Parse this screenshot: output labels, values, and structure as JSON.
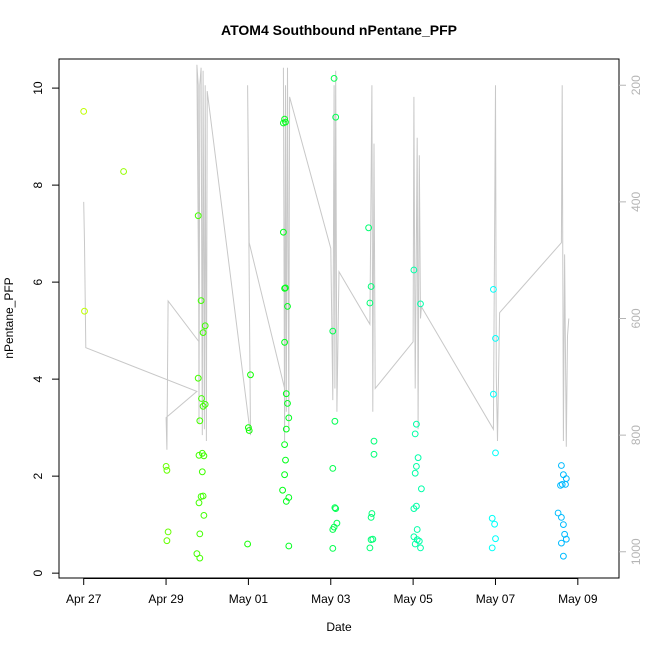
{
  "chart_data": {
    "type": "scatter",
    "title": "ATOM4 Southbound nPentane_PFP",
    "xlabel": "Date",
    "ylabel": "nPentane_PFP",
    "x_tick_labels": [
      "Apr 27",
      "Apr 29",
      "May 01",
      "May 03",
      "May 05",
      "May 07",
      "May 09"
    ],
    "x_tick_days": [
      0,
      2,
      4,
      6,
      8,
      10,
      12
    ],
    "xlim_days": [
      -0.6,
      13.0
    ],
    "ylim": [
      -0.1,
      10.6
    ],
    "y_ticks": [
      0,
      2,
      4,
      6,
      8,
      10
    ],
    "y2_ticks": [
      200,
      400,
      600,
      800,
      1000
    ],
    "y2lim": [
      1045,
      155
    ],
    "grid": false,
    "colors": {
      "axis": "#000000",
      "right_axis": "#b5b5b5",
      "pressure_line": "#c8c8c8"
    },
    "series": [
      {
        "marker": "open-circle",
        "points": [
          {
            "d": 0.0,
            "y": 9.52
          },
          {
            "d": 0.02,
            "y": 5.4
          },
          {
            "d": 0.97,
            "y": 8.28
          },
          {
            "d": 2.0,
            "y": 2.2
          },
          {
            "d": 2.02,
            "y": 2.12
          },
          {
            "d": 2.05,
            "y": 0.85
          },
          {
            "d": 2.02,
            "y": 0.67
          },
          {
            "d": 2.78,
            "y": 7.37
          },
          {
            "d": 2.85,
            "y": 5.62
          },
          {
            "d": 2.95,
            "y": 5.1
          },
          {
            "d": 2.9,
            "y": 4.96
          },
          {
            "d": 2.78,
            "y": 4.02
          },
          {
            "d": 2.86,
            "y": 3.6
          },
          {
            "d": 2.9,
            "y": 3.44
          },
          {
            "d": 2.95,
            "y": 3.48
          },
          {
            "d": 2.82,
            "y": 3.14
          },
          {
            "d": 2.8,
            "y": 2.43
          },
          {
            "d": 2.88,
            "y": 2.47
          },
          {
            "d": 2.92,
            "y": 2.42
          },
          {
            "d": 2.88,
            "y": 2.09
          },
          {
            "d": 2.8,
            "y": 1.45
          },
          {
            "d": 2.85,
            "y": 1.58
          },
          {
            "d": 2.9,
            "y": 1.59
          },
          {
            "d": 2.92,
            "y": 1.19
          },
          {
            "d": 2.82,
            "y": 0.81
          },
          {
            "d": 2.75,
            "y": 0.4
          },
          {
            "d": 2.82,
            "y": 0.31
          },
          {
            "d": 4.05,
            "y": 4.09
          },
          {
            "d": 4.0,
            "y": 3.0
          },
          {
            "d": 4.02,
            "y": 2.94
          },
          {
            "d": 3.98,
            "y": 0.6
          },
          {
            "d": 4.88,
            "y": 9.36
          },
          {
            "d": 4.85,
            "y": 9.28
          },
          {
            "d": 4.9,
            "y": 9.3
          },
          {
            "d": 4.85,
            "y": 7.03
          },
          {
            "d": 4.88,
            "y": 5.87
          },
          {
            "d": 4.9,
            "y": 5.88
          },
          {
            "d": 4.95,
            "y": 5.5
          },
          {
            "d": 4.88,
            "y": 4.76
          },
          {
            "d": 4.92,
            "y": 3.7
          },
          {
            "d": 4.95,
            "y": 3.5
          },
          {
            "d": 4.98,
            "y": 3.2
          },
          {
            "d": 4.92,
            "y": 2.97
          },
          {
            "d": 4.88,
            "y": 2.65
          },
          {
            "d": 4.9,
            "y": 2.33
          },
          {
            "d": 4.88,
            "y": 2.03
          },
          {
            "d": 4.83,
            "y": 1.71
          },
          {
            "d": 4.98,
            "y": 1.56
          },
          {
            "d": 4.92,
            "y": 1.48
          },
          {
            "d": 4.98,
            "y": 0.56
          },
          {
            "d": 6.08,
            "y": 10.2
          },
          {
            "d": 6.12,
            "y": 9.4
          },
          {
            "d": 6.05,
            "y": 4.99
          },
          {
            "d": 6.1,
            "y": 3.13
          },
          {
            "d": 6.05,
            "y": 2.16
          },
          {
            "d": 6.1,
            "y": 1.35
          },
          {
            "d": 6.12,
            "y": 1.33
          },
          {
            "d": 6.15,
            "y": 1.03
          },
          {
            "d": 6.05,
            "y": 0.9
          },
          {
            "d": 6.08,
            "y": 0.95
          },
          {
            "d": 6.05,
            "y": 0.51
          },
          {
            "d": 6.92,
            "y": 7.12
          },
          {
            "d": 6.98,
            "y": 5.91
          },
          {
            "d": 6.95,
            "y": 5.57
          },
          {
            "d": 7.05,
            "y": 2.72
          },
          {
            "d": 7.05,
            "y": 2.45
          },
          {
            "d": 7.0,
            "y": 1.23
          },
          {
            "d": 6.98,
            "y": 1.15
          },
          {
            "d": 7.02,
            "y": 0.7
          },
          {
            "d": 6.98,
            "y": 0.69
          },
          {
            "d": 6.95,
            "y": 0.52
          },
          {
            "d": 8.02,
            "y": 6.25
          },
          {
            "d": 8.18,
            "y": 5.55
          },
          {
            "d": 8.08,
            "y": 3.07
          },
          {
            "d": 8.05,
            "y": 2.87
          },
          {
            "d": 8.12,
            "y": 2.38
          },
          {
            "d": 8.08,
            "y": 2.2
          },
          {
            "d": 8.05,
            "y": 2.06
          },
          {
            "d": 8.2,
            "y": 1.74
          },
          {
            "d": 8.08,
            "y": 1.38
          },
          {
            "d": 8.02,
            "y": 1.33
          },
          {
            "d": 8.1,
            "y": 0.9
          },
          {
            "d": 8.02,
            "y": 0.75
          },
          {
            "d": 8.1,
            "y": 0.69
          },
          {
            "d": 8.15,
            "y": 0.66
          },
          {
            "d": 8.05,
            "y": 0.6
          },
          {
            "d": 8.18,
            "y": 0.52
          },
          {
            "d": 9.95,
            "y": 5.85
          },
          {
            "d": 10.0,
            "y": 4.84
          },
          {
            "d": 9.95,
            "y": 3.69
          },
          {
            "d": 10.0,
            "y": 2.48
          },
          {
            "d": 9.92,
            "y": 1.13
          },
          {
            "d": 9.98,
            "y": 1.01
          },
          {
            "d": 10.0,
            "y": 0.71
          },
          {
            "d": 9.92,
            "y": 0.52
          },
          {
            "d": 11.6,
            "y": 2.22
          },
          {
            "d": 11.65,
            "y": 2.03
          },
          {
            "d": 11.72,
            "y": 1.95
          },
          {
            "d": 11.62,
            "y": 1.83
          },
          {
            "d": 11.7,
            "y": 1.83
          },
          {
            "d": 11.58,
            "y": 1.81
          },
          {
            "d": 11.52,
            "y": 1.24
          },
          {
            "d": 11.6,
            "y": 1.15
          },
          {
            "d": 11.65,
            "y": 1.0
          },
          {
            "d": 11.68,
            "y": 0.8
          },
          {
            "d": 11.72,
            "y": 0.7
          },
          {
            "d": 11.6,
            "y": 0.62
          },
          {
            "d": 11.65,
            "y": 0.35
          }
        ]
      }
    ],
    "pressure_line": [
      [
        0.0,
        400
      ],
      [
        0.02,
        470
      ],
      [
        0.05,
        650
      ],
      [
        2.75,
        725
      ],
      [
        2.0,
        770
      ],
      [
        2.02,
        825
      ],
      [
        2.05,
        570
      ],
      [
        2.8,
        640
      ],
      [
        2.75,
        165
      ],
      [
        2.78,
        200
      ],
      [
        2.8,
        780
      ],
      [
        2.82,
        200
      ],
      [
        2.85,
        170
      ],
      [
        2.88,
        800
      ],
      [
        2.9,
        175
      ],
      [
        2.93,
        790
      ],
      [
        2.95,
        200
      ],
      [
        2.98,
        810
      ],
      [
        3.0,
        210
      ],
      [
        4.05,
        800
      ],
      [
        3.98,
        200
      ],
      [
        4.02,
        470
      ],
      [
        4.88,
        720
      ],
      [
        4.85,
        170
      ],
      [
        4.88,
        810
      ],
      [
        4.9,
        200
      ],
      [
        4.92,
        760
      ],
      [
        4.95,
        170
      ],
      [
        4.98,
        790
      ],
      [
        5.0,
        220
      ],
      [
        6.0,
        480
      ],
      [
        6.05,
        740
      ],
      [
        6.08,
        200
      ],
      [
        6.1,
        720
      ],
      [
        6.12,
        175
      ],
      [
        6.15,
        760
      ],
      [
        6.2,
        520
      ],
      [
        6.95,
        610
      ],
      [
        7.0,
        200
      ],
      [
        7.02,
        760
      ],
      [
        7.05,
        300
      ],
      [
        7.08,
        720
      ],
      [
        8.0,
        640
      ],
      [
        8.02,
        220
      ],
      [
        8.05,
        720
      ],
      [
        8.1,
        290
      ],
      [
        8.12,
        790
      ],
      [
        8.15,
        320
      ],
      [
        8.18,
        600
      ],
      [
        8.2,
        580
      ],
      [
        9.95,
        790
      ],
      [
        10.0,
        200
      ],
      [
        10.02,
        700
      ],
      [
        10.05,
        810
      ],
      [
        10.1,
        590
      ],
      [
        11.6,
        470
      ],
      [
        11.62,
        200
      ],
      [
        11.65,
        810
      ],
      [
        11.68,
        490
      ],
      [
        11.72,
        820
      ],
      [
        11.75,
        630
      ],
      [
        11.78,
        600
      ]
    ]
  }
}
